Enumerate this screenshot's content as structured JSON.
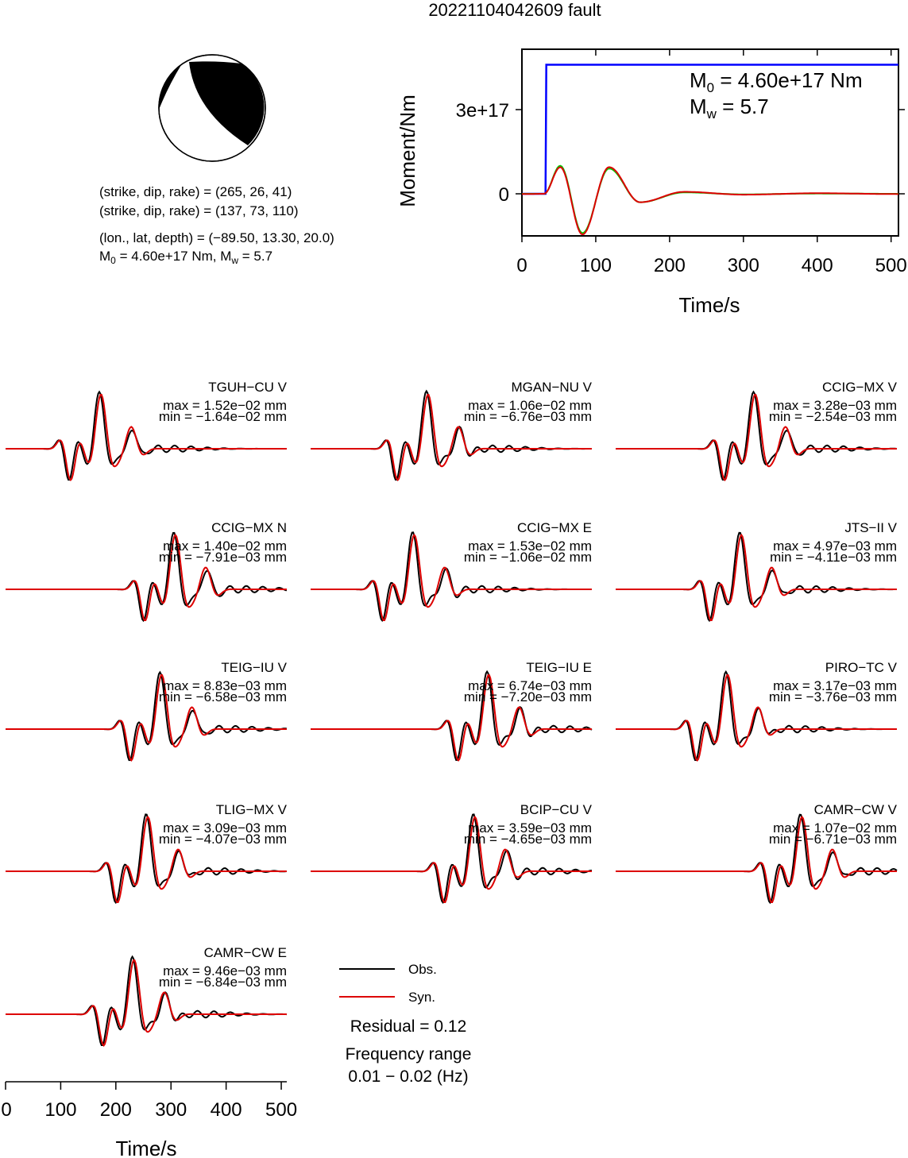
{
  "title": "20221104042609 fault",
  "mechanism": {
    "plane1": "(strike, dip, rake) = (265, 26, 41)",
    "plane2": "(strike, dip, rake) = (137, 73, 110)",
    "location": "(lon., lat, depth) = (−89.50, 13.30, 20.0)",
    "moment_prefix": "M",
    "moment_sub": "0",
    "moment_rest": " = 4.60e+17 Nm, M",
    "mw_sub": "w",
    "mw_rest": " = 5.7"
  },
  "moment_panel": {
    "ylabel": "Moment/Nm",
    "xlabel": "Time/s",
    "xticks": [
      "0",
      "100",
      "200",
      "300",
      "400",
      "500"
    ],
    "yticks": [
      "0",
      "3e+17"
    ],
    "m0_prefix": "M",
    "m0_sub": "0",
    "m0_rest": " = 4.60e+17 Nm",
    "mw_prefix": "M",
    "mw_sub": "w",
    "mw_rest": " = 5.7",
    "colors": {
      "cumulative": "#0000ff",
      "rate_a": "#00cc00",
      "rate_b": "#dd0000"
    }
  },
  "traces": [
    {
      "name": "TGUH−CU V",
      "max": "max = 1.52e−02 mm",
      "min": "min = −1.64e−02 mm"
    },
    {
      "name": "MGAN−NU V",
      "max": "max = 1.06e−02 mm",
      "min": "min = −6.76e−03 mm"
    },
    {
      "name": "CCIG−MX V",
      "max": "max = 3.28e−03 mm",
      "min": "min = −2.54e−03 mm"
    },
    {
      "name": "CCIG−MX N",
      "max": "max = 1.40e−02 mm",
      "min": "min = −7.91e−03 mm"
    },
    {
      "name": "CCIG−MX E",
      "max": "max = 1.53e−02 mm",
      "min": "min = −1.06e−02 mm"
    },
    {
      "name": "JTS−II V",
      "max": "max = 4.97e−03 mm",
      "min": "min = −4.11e−03 mm"
    },
    {
      "name": "TEIG−IU V",
      "max": "max = 8.83e−03 mm",
      "min": "min = −6.58e−03 mm"
    },
    {
      "name": "TEIG−IU E",
      "max": "max = 6.74e−03 mm",
      "min": "min = −7.20e−03 mm"
    },
    {
      "name": "PIRO−TC V",
      "max": "max = 3.17e−03 mm",
      "min": "min = −3.76e−03 mm"
    },
    {
      "name": "TLIG−MX V",
      "max": "max = 3.09e−03 mm",
      "min": "min = −4.07e−03 mm"
    },
    {
      "name": "BCIP−CU V",
      "max": "max = 3.59e−03 mm",
      "min": "min = −4.65e−03 mm"
    },
    {
      "name": "CAMR−CW V",
      "max": "max = 1.07e−02 mm",
      "min": "min = −6.71e−03 mm"
    },
    {
      "name": "CAMR−CW E",
      "max": "max = 9.46e−03 mm",
      "min": "min = −6.84e−03 mm"
    }
  ],
  "legend": {
    "obs": "Obs.",
    "syn": "Syn.",
    "obs_color": "#000000",
    "syn_color": "#dd0000",
    "residual": "Residual = 0.12",
    "freq_title": "Frequency range",
    "freq_range": "0.01 − 0.02 (Hz)"
  },
  "bottom_axis": {
    "xlabel": "Time/s",
    "xticks": [
      "0",
      "100",
      "200",
      "300",
      "400",
      "500"
    ]
  },
  "chart_data": {
    "type": "line",
    "title": "20221104042609 fault",
    "moment_function": {
      "xlabel": "Time/s",
      "ylabel": "Moment/Nm",
      "xlim": [
        0,
        510
      ],
      "ylim": [
        -1.5e+17,
        5.4e+17
      ],
      "cumulative_moment": {
        "x": [
          0,
          32,
          33,
          510
        ],
        "y": [
          0,
          0,
          4.6e+17,
          4.6e+17
        ]
      },
      "moment_rate_curves": [
        {
          "x": [
            0,
            30,
            52,
            82,
            118,
            160,
            220,
            300,
            400,
            510
          ],
          "y": [
            0,
            0,
            1e+17,
            -1.4e+17,
            9e+16,
            -3e+16,
            5000000000000000.0,
            -2000000000000000.0,
            1000000000000000.0,
            0.0
          ]
        },
        {
          "x": [
            0,
            30,
            52,
            82,
            118,
            160,
            220,
            300,
            400,
            510
          ],
          "y": [
            -1000000000000000.0,
            0,
            9.5e+16,
            -1.45e+17,
            9.5e+16,
            -3e+16,
            7000000000000000.0,
            -3000000000000000.0,
            2000000000000000.0,
            -1000000000000000.0
          ]
        }
      ]
    },
    "waveforms": {
      "xlabel": "Time/s",
      "xlim": [
        0,
        510
      ],
      "series": [
        "Obs.",
        "Syn."
      ]
    },
    "residual": 0.12
  }
}
